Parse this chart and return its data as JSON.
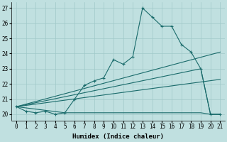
{
  "xlabel": "Humidex (Indice chaleur)",
  "background_color": "#c0e0e0",
  "line_color": "#1a6b6b",
  "grid_color": "#a0c8c8",
  "xlim": [
    -0.5,
    21.5
  ],
  "ylim": [
    19.6,
    27.4
  ],
  "xticks": [
    0,
    1,
    2,
    3,
    4,
    5,
    6,
    7,
    8,
    9,
    10,
    11,
    12,
    13,
    14,
    15,
    16,
    17,
    18,
    19,
    20,
    21
  ],
  "yticks": [
    20,
    21,
    22,
    23,
    24,
    25,
    26,
    27
  ],
  "line1_x": [
    0,
    1,
    2,
    3,
    4,
    5,
    6,
    7,
    8,
    9,
    10,
    11,
    12,
    13,
    14,
    15,
    16,
    17,
    18,
    19,
    20,
    21
  ],
  "line1_y": [
    20.5,
    20.2,
    20.1,
    20.2,
    20.0,
    20.1,
    21.0,
    21.9,
    22.2,
    22.4,
    23.6,
    23.3,
    23.8,
    27.0,
    26.4,
    25.8,
    25.8,
    24.6,
    24.1,
    23.0,
    20.0,
    20.0
  ],
  "line2_x": [
    0,
    19,
    20,
    21
  ],
  "line2_y": [
    20.5,
    23.0,
    20.0,
    20.0
  ],
  "line3_x": [
    0,
    21
  ],
  "line3_y": [
    20.5,
    24.1
  ],
  "line4_x": [
    0,
    21
  ],
  "line4_y": [
    20.5,
    22.3
  ],
  "line5_x": [
    0,
    5,
    6,
    19,
    20,
    21
  ],
  "line5_y": [
    20.5,
    20.1,
    20.1,
    20.1,
    20.0,
    20.0
  ],
  "xlabel_fontsize": 6.5,
  "tick_fontsize": 5.5
}
